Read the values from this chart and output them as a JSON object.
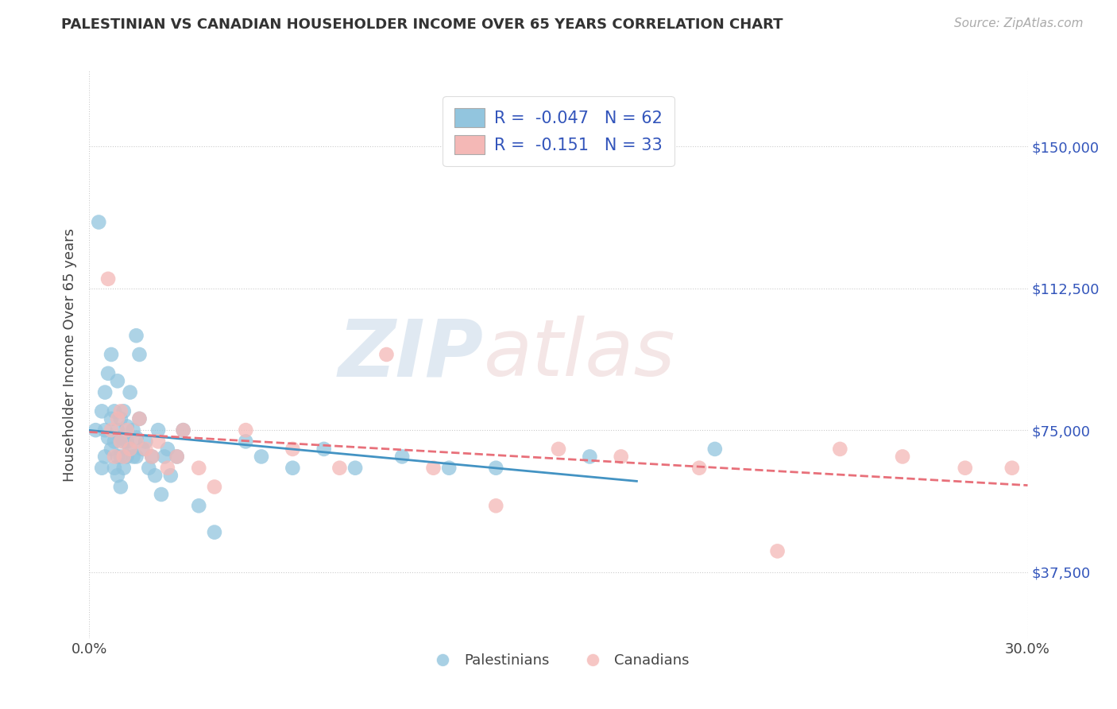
{
  "title": "PALESTINIAN VS CANADIAN HOUSEHOLDER INCOME OVER 65 YEARS CORRELATION CHART",
  "source": "Source: ZipAtlas.com",
  "ylabel": "Householder Income Over 65 years",
  "xlim": [
    0.0,
    0.3
  ],
  "ylim": [
    20000,
    170000
  ],
  "yticks": [
    37500,
    75000,
    112500,
    150000
  ],
  "ytick_labels": [
    "$37,500",
    "$75,000",
    "$112,500",
    "$150,000"
  ],
  "palestinians_color": "#92C5DE",
  "canadians_color": "#F4B8B6",
  "trend_palestinian_color": "#4393C3",
  "trend_canadian_color": "#E8707A",
  "watermark_zip": "ZIP",
  "watermark_atlas": "atlas",
  "palestinians_x": [
    0.002,
    0.003,
    0.004,
    0.004,
    0.005,
    0.005,
    0.005,
    0.006,
    0.006,
    0.007,
    0.007,
    0.007,
    0.008,
    0.008,
    0.008,
    0.009,
    0.009,
    0.009,
    0.009,
    0.01,
    0.01,
    0.01,
    0.01,
    0.011,
    0.011,
    0.011,
    0.012,
    0.012,
    0.012,
    0.013,
    0.013,
    0.014,
    0.014,
    0.015,
    0.015,
    0.015,
    0.016,
    0.016,
    0.017,
    0.018,
    0.019,
    0.02,
    0.021,
    0.022,
    0.023,
    0.024,
    0.025,
    0.026,
    0.028,
    0.03,
    0.035,
    0.04,
    0.05,
    0.055,
    0.065,
    0.075,
    0.085,
    0.1,
    0.115,
    0.13,
    0.16,
    0.2
  ],
  "palestinians_y": [
    75000,
    130000,
    65000,
    80000,
    75000,
    68000,
    85000,
    73000,
    90000,
    78000,
    70000,
    95000,
    72000,
    65000,
    80000,
    68000,
    75000,
    63000,
    88000,
    73000,
    68000,
    78000,
    60000,
    72000,
    80000,
    65000,
    68000,
    76000,
    72000,
    70000,
    85000,
    68000,
    75000,
    100000,
    68000,
    73000,
    95000,
    78000,
    70000,
    72000,
    65000,
    68000,
    63000,
    75000,
    58000,
    68000,
    70000,
    63000,
    68000,
    75000,
    55000,
    48000,
    72000,
    68000,
    65000,
    70000,
    65000,
    68000,
    65000,
    65000,
    68000,
    70000
  ],
  "canadians_x": [
    0.006,
    0.007,
    0.008,
    0.009,
    0.01,
    0.01,
    0.011,
    0.012,
    0.013,
    0.015,
    0.016,
    0.018,
    0.02,
    0.022,
    0.025,
    0.028,
    0.03,
    0.035,
    0.04,
    0.05,
    0.065,
    0.08,
    0.095,
    0.11,
    0.13,
    0.15,
    0.17,
    0.195,
    0.22,
    0.24,
    0.26,
    0.28,
    0.295
  ],
  "canadians_y": [
    115000,
    75000,
    68000,
    78000,
    72000,
    80000,
    68000,
    75000,
    70000,
    72000,
    78000,
    70000,
    68000,
    72000,
    65000,
    68000,
    75000,
    65000,
    60000,
    75000,
    70000,
    65000,
    95000,
    65000,
    55000,
    70000,
    68000,
    65000,
    43000,
    70000,
    68000,
    65000,
    65000
  ]
}
